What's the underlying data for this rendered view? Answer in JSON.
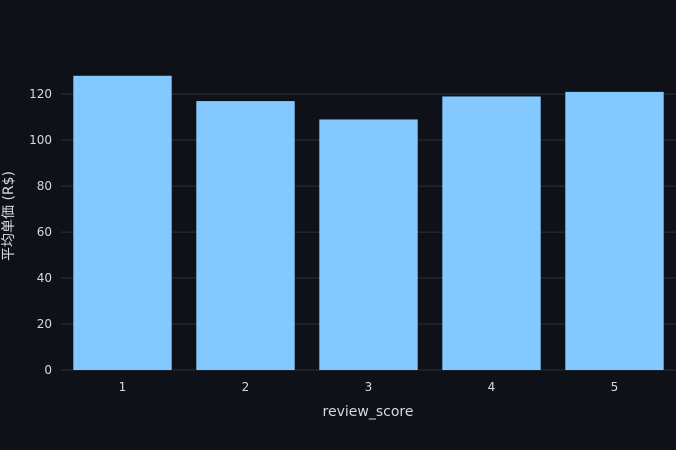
{
  "chart_data": {
    "type": "bar",
    "categories": [
      "1",
      "2",
      "3",
      "4",
      "5"
    ],
    "values": [
      128,
      117,
      109,
      119,
      121
    ],
    "xlabel": "review_score",
    "ylabel": "平均单価 (R$)",
    "ylim": [
      0,
      134
    ],
    "yticks": [
      0,
      20,
      40,
      60,
      80,
      100,
      120
    ],
    "grid": true,
    "bar_color": "#83c9ff",
    "background": "#0e1117",
    "grid_color": "#2b3038"
  }
}
